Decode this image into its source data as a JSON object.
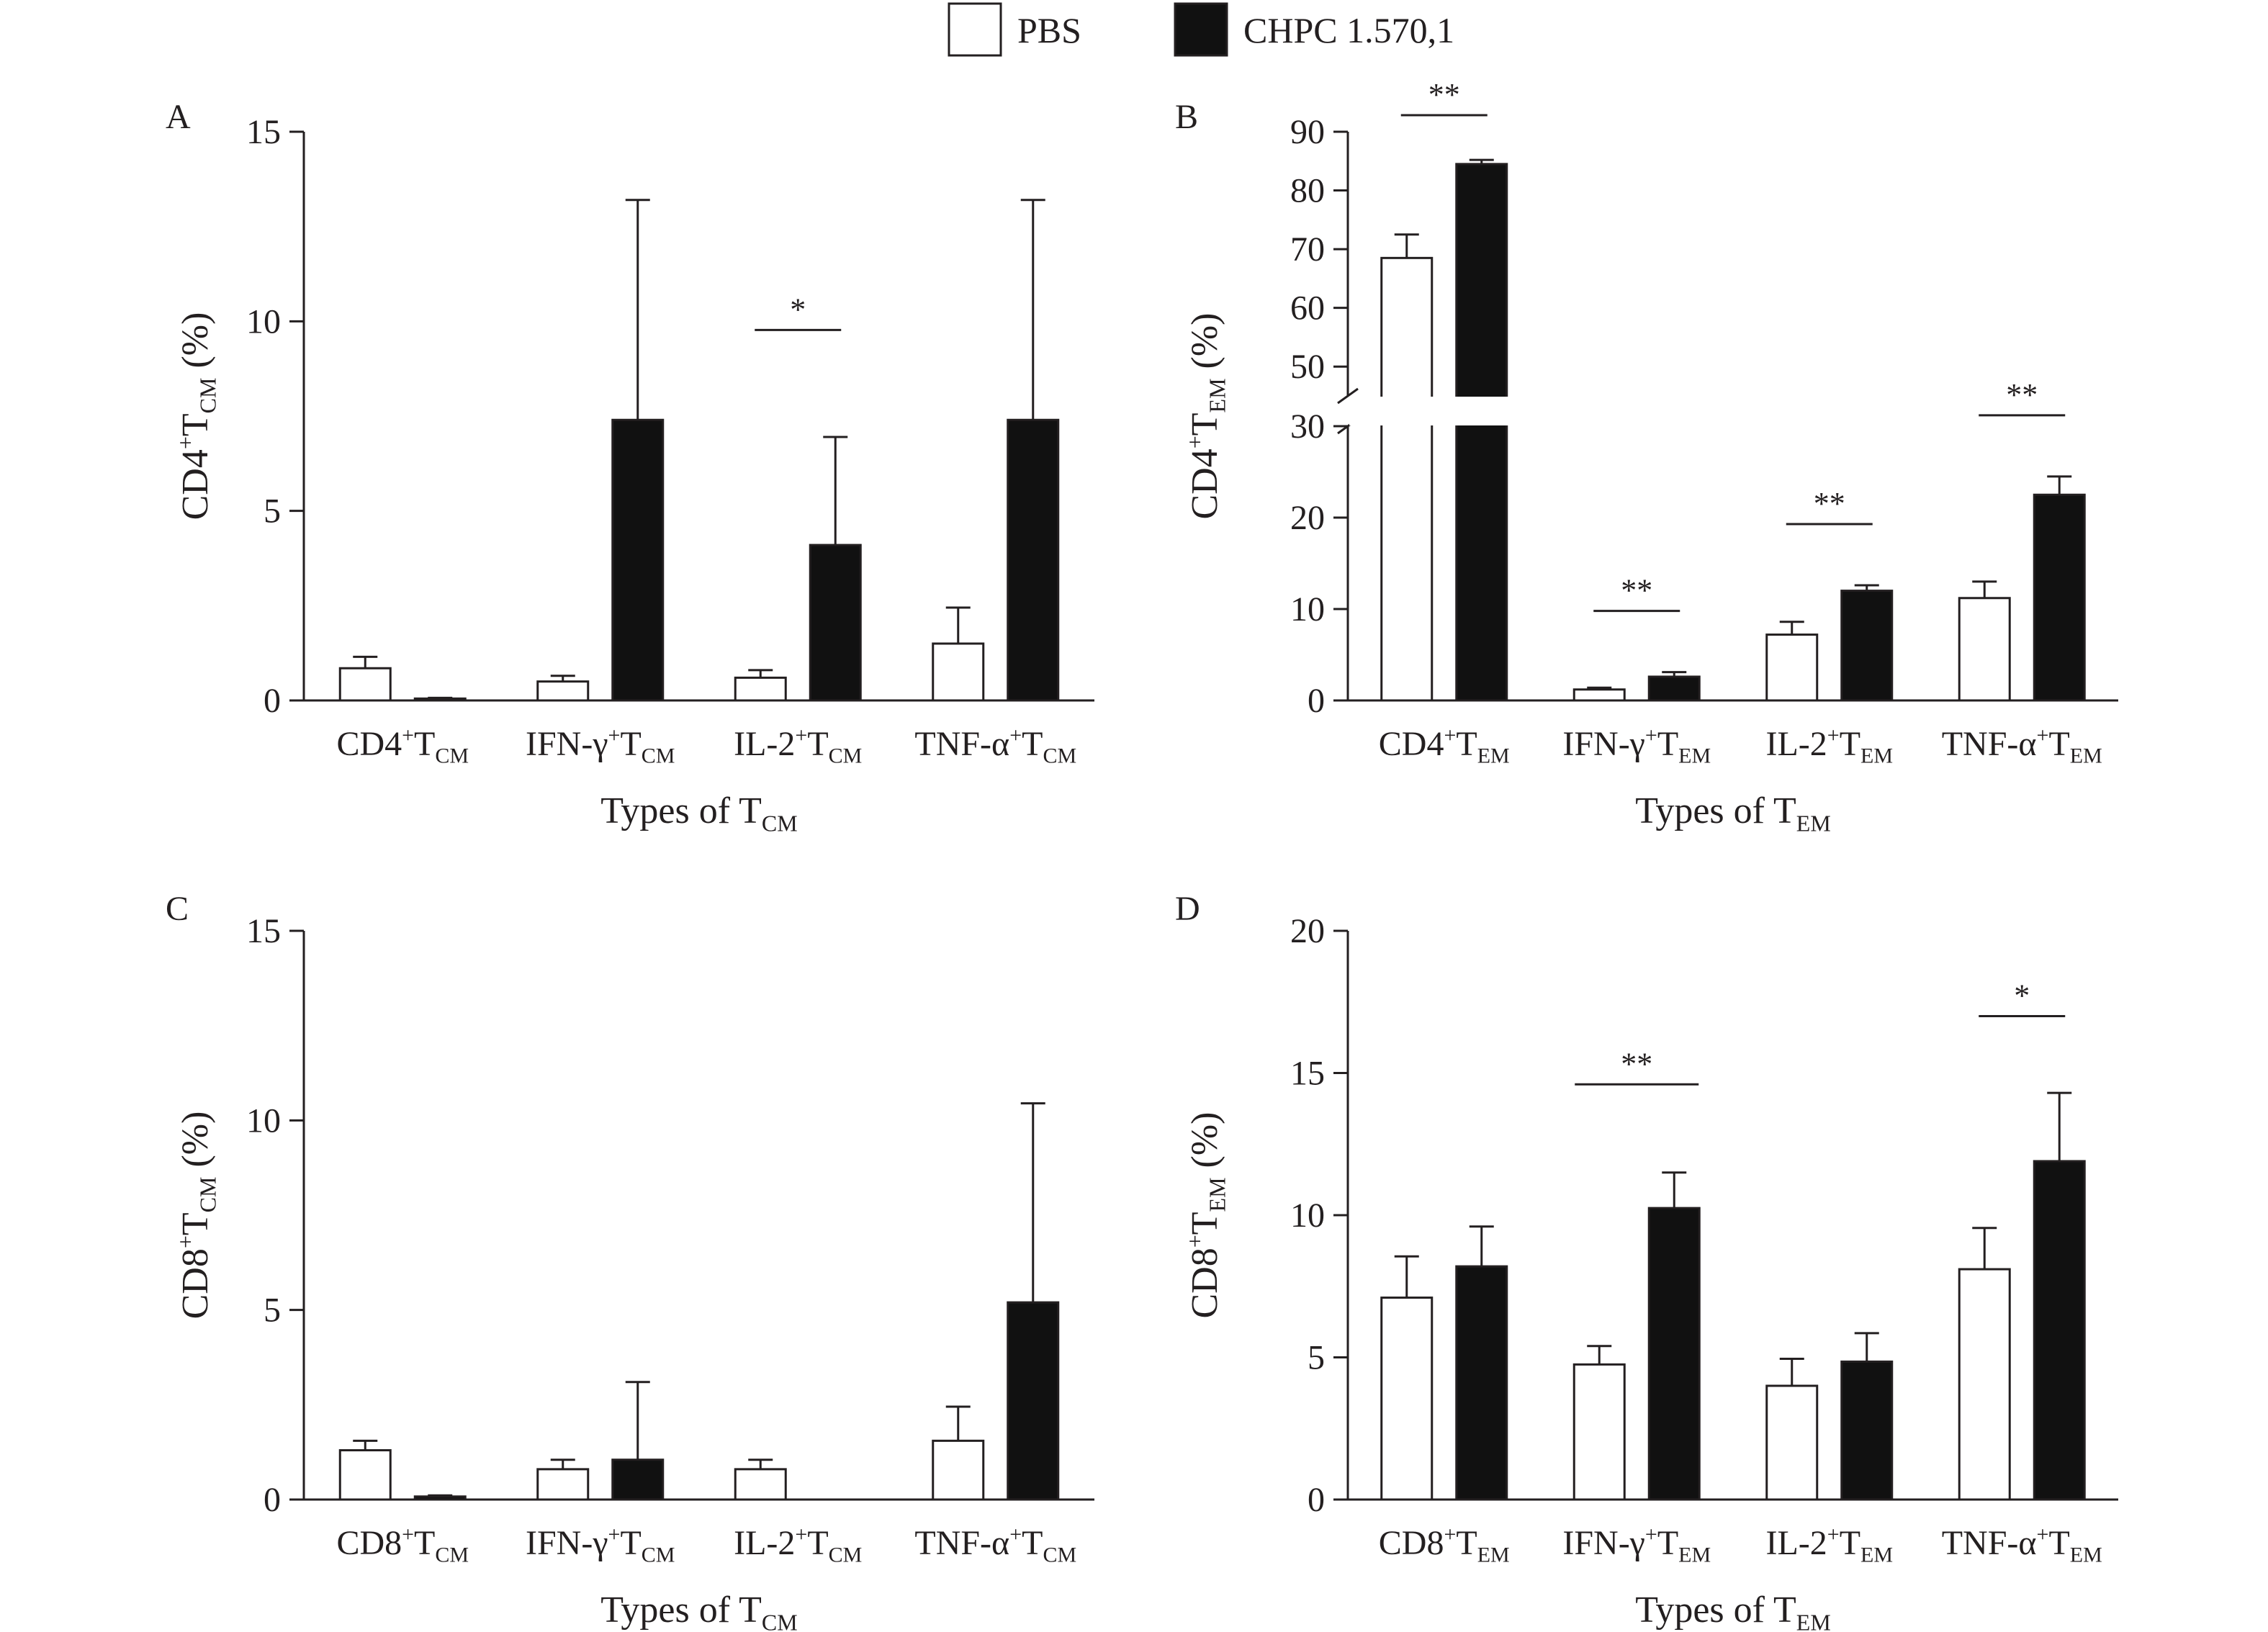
{
  "legend": {
    "items": [
      {
        "label": "PBS",
        "color": "#ffffff"
      },
      {
        "label": "CHPC 1.570,1",
        "color": "#111111"
      }
    ]
  },
  "chart_data": [
    {
      "panel": "A",
      "type": "bar",
      "ylabel": {
        "main": "CD4",
        "sup": "+",
        "base": "T",
        "sub": "CM",
        "tail": " (%)"
      },
      "xlabel": {
        "main": "Types of T",
        "sub": "CM"
      },
      "ylim": [
        0,
        15
      ],
      "yticks": [
        0,
        5,
        10,
        15
      ],
      "categories": [
        {
          "main": "CD4",
          "sup": "+",
          "base": "T",
          "sub": "CM"
        },
        {
          "main": "IFN-γ",
          "sup": "+",
          "base": "T",
          "sub": "CM"
        },
        {
          "main": "IL-2",
          "sup": "+",
          "base": "T",
          "sub": "CM"
        },
        {
          "main": "TNF-α",
          "sup": "+",
          "base": "T",
          "sub": "CM"
        }
      ],
      "series": [
        {
          "name": "PBS",
          "values": [
            0.85,
            0.5,
            0.6,
            1.5
          ],
          "errors": [
            0.3,
            0.15,
            0.2,
            0.95
          ]
        },
        {
          "name": "CHPC 1.570,1",
          "values": [
            0.05,
            7.4,
            4.1,
            7.4
          ],
          "errors": [
            0.02,
            5.8,
            2.85,
            5.8
          ]
        }
      ],
      "significance": [
        {
          "category": 2,
          "label": "*"
        }
      ]
    },
    {
      "panel": "B",
      "type": "bar",
      "ylabel": {
        "main": "CD4",
        "sup": "+",
        "base": "T",
        "sub": "EM",
        "tail": " (%)"
      },
      "xlabel": {
        "main": "Types of T",
        "sub": "EM"
      },
      "ylim": [
        0,
        90
      ],
      "axis_break": [
        30,
        45
      ],
      "yticks": [
        0,
        10,
        20,
        30,
        50,
        60,
        70,
        80,
        90
      ],
      "categories": [
        {
          "main": "CD4",
          "sup": "+",
          "base": "T",
          "sub": "EM"
        },
        {
          "main": "IFN-γ",
          "sup": "+",
          "base": "T",
          "sub": "EM"
        },
        {
          "main": "IL-2",
          "sup": "+",
          "base": "T",
          "sub": "EM"
        },
        {
          "main": "TNF-α",
          "sup": "+",
          "base": "T",
          "sub": "EM"
        }
      ],
      "series": [
        {
          "name": "PBS",
          "values": [
            68.5,
            1.2,
            7.2,
            11.2
          ],
          "errors": [
            4.0,
            0.2,
            1.4,
            1.8
          ]
        },
        {
          "name": "CHPC 1.570,1",
          "values": [
            84.5,
            2.6,
            12.0,
            22.5
          ],
          "errors": [
            0.7,
            0.5,
            0.6,
            2.0
          ]
        }
      ],
      "significance": [
        {
          "category": 0,
          "label": "**"
        },
        {
          "category": 1,
          "label": "**"
        },
        {
          "category": 2,
          "label": "**"
        },
        {
          "category": 3,
          "label": "**"
        }
      ]
    },
    {
      "panel": "C",
      "type": "bar",
      "ylabel": {
        "main": "CD8",
        "sup": "+",
        "base": "T",
        "sub": "CM",
        "tail": " (%)"
      },
      "xlabel": {
        "main": "Types of T",
        "sub": "CM"
      },
      "ylim": [
        0,
        15
      ],
      "yticks": [
        0,
        5,
        10,
        15
      ],
      "categories": [
        {
          "main": "CD8",
          "sup": "+",
          "base": "T",
          "sub": "CM"
        },
        {
          "main": "IFN-γ",
          "sup": "+",
          "base": "T",
          "sub": "CM"
        },
        {
          "main": "IL-2",
          "sup": "+",
          "base": "T",
          "sub": "CM"
        },
        {
          "main": "TNF-α",
          "sup": "+",
          "base": "T",
          "sub": "CM"
        }
      ],
      "series": [
        {
          "name": "PBS",
          "values": [
            1.3,
            0.8,
            0.8,
            1.55
          ],
          "errors": [
            0.25,
            0.25,
            0.25,
            0.9
          ]
        },
        {
          "name": "CHPC 1.570,1",
          "values": [
            0.08,
            1.05,
            0.0,
            5.2
          ],
          "errors": [
            0.03,
            2.05,
            0.0,
            5.25
          ]
        }
      ],
      "significance": []
    },
    {
      "panel": "D",
      "type": "bar",
      "ylabel": {
        "main": "CD8",
        "sup": "+",
        "base": "T",
        "sub": "EM",
        "tail": " (%)"
      },
      "xlabel": {
        "main": "Types of T",
        "sub": "EM"
      },
      "ylim": [
        0,
        20
      ],
      "yticks": [
        0,
        5,
        10,
        15,
        20
      ],
      "categories": [
        {
          "main": "CD8",
          "sup": "+",
          "base": "T",
          "sub": "EM"
        },
        {
          "main": "IFN-γ",
          "sup": "+",
          "base": "T",
          "sub": "EM"
        },
        {
          "main": "IL-2",
          "sup": "+",
          "base": "T",
          "sub": "EM"
        },
        {
          "main": "TNF-α",
          "sup": "+",
          "base": "T",
          "sub": "EM"
        }
      ],
      "series": [
        {
          "name": "PBS",
          "values": [
            7.1,
            4.75,
            4.0,
            8.1
          ],
          "errors": [
            1.45,
            0.65,
            0.95,
            1.45
          ]
        },
        {
          "name": "CHPC 1.570,1",
          "values": [
            8.2,
            10.25,
            4.85,
            11.9
          ],
          "errors": [
            1.4,
            1.25,
            1.0,
            2.4
          ]
        }
      ],
      "significance": [
        {
          "category": 1,
          "label": "**"
        },
        {
          "category": 3,
          "label": "*"
        }
      ]
    }
  ]
}
